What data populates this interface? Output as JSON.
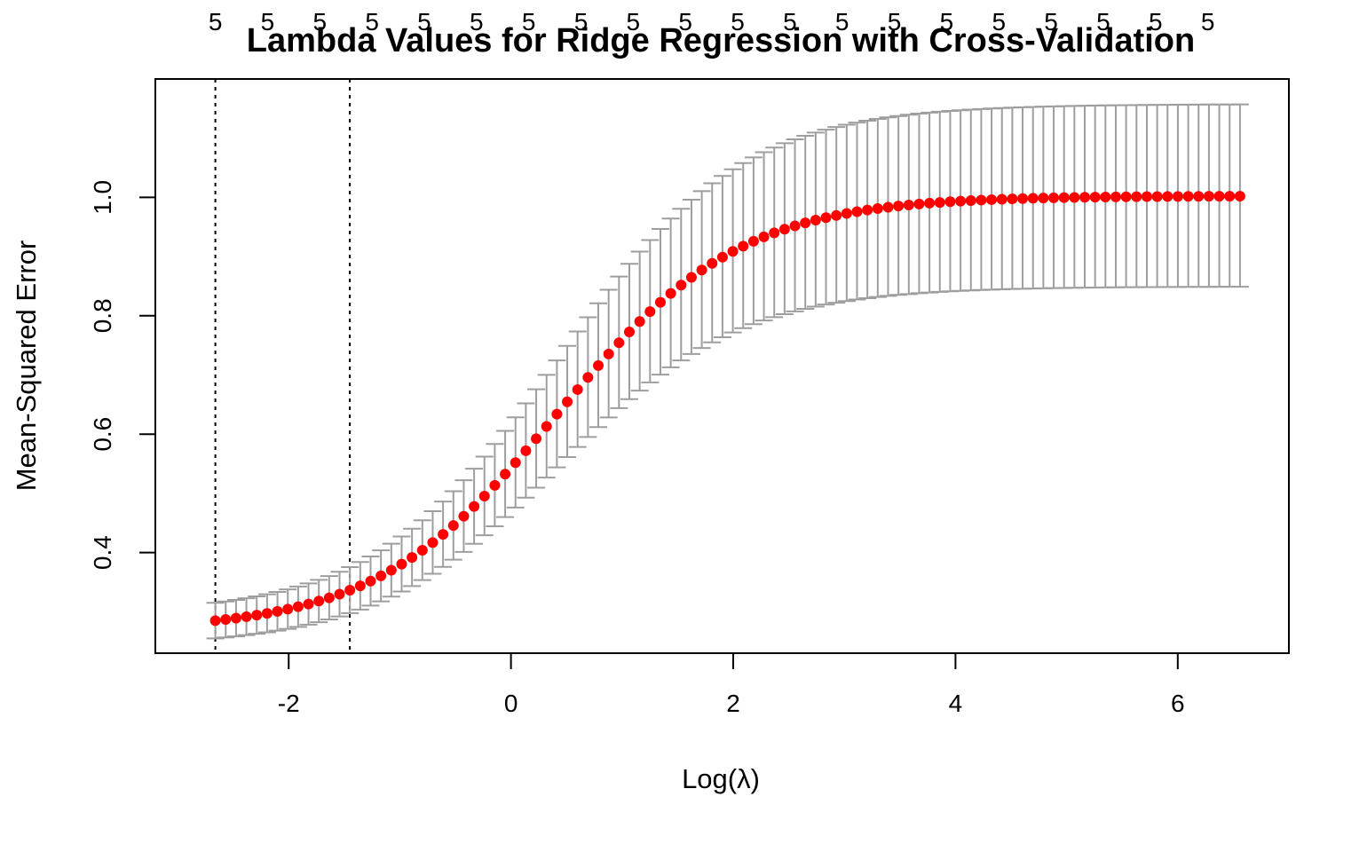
{
  "chart_data": {
    "type": "scatter",
    "title": "Lambda Values for Ridge Regression with Cross-Validation",
    "xlabel": "Log(λ)",
    "ylabel": "Mean-Squared Error",
    "xlim": [
      -3.2,
      7.0
    ],
    "ylim": [
      0.23,
      1.2
    ],
    "x_ticks": [
      -2,
      0,
      2,
      4,
      6
    ],
    "x_tick_labels": [
      "-2",
      "0",
      "2",
      "4",
      "6"
    ],
    "y_ticks": [
      0.4,
      0.6,
      0.8,
      1.0
    ],
    "y_tick_labels": [
      "0.4",
      "0.6",
      "0.8",
      "1.0"
    ],
    "top_axis_labels": [
      "5",
      "5",
      "5",
      "5",
      "5",
      "5",
      "5",
      "5",
      "5",
      "5",
      "5",
      "5",
      "5",
      "5",
      "5",
      "5",
      "5",
      "5",
      "5",
      "5"
    ],
    "top_axis_x": [
      -2.66,
      -2.19,
      -1.72,
      -1.25,
      -0.78,
      -0.31,
      0.16,
      0.63,
      1.1,
      1.57,
      2.04,
      2.51,
      2.98,
      3.45,
      3.92,
      4.39,
      4.86,
      5.33,
      5.8,
      6.27
    ],
    "vertical_lines_x": [
      -2.66,
      -1.45
    ],
    "grid": false,
    "series": [
      {
        "x_range": [
          -2.66,
          6.56
        ],
        "n_points": 100,
        "mean_min": 0.285,
        "mean_max": 1.002,
        "mean_center": 0.42,
        "mean_scale": 0.82,
        "upper_at_min": 0.315,
        "upper_at_max": 1.157,
        "lower_at_min": 0.255,
        "lower_at_max": 0.849,
        "point_color": "#ff0000",
        "errorbar_color": "#9e9e9e"
      }
    ]
  }
}
